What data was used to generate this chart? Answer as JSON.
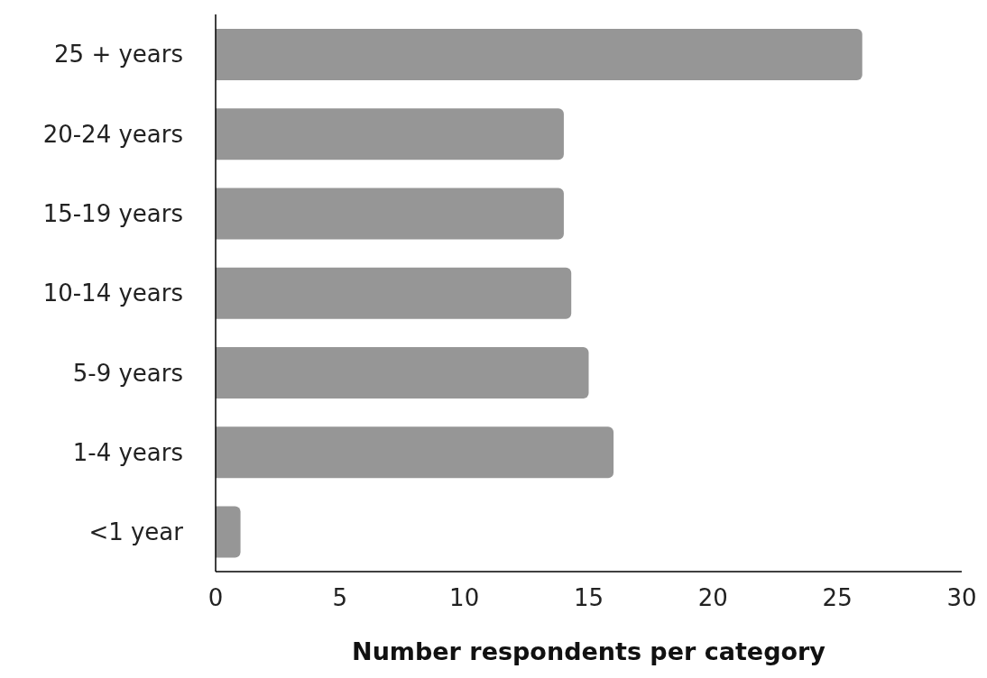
{
  "chart_data": {
    "type": "bar",
    "orientation": "horizontal",
    "xlabel": "Number respondents per category",
    "categories": [
      "25 + years",
      "20-24 years",
      "15-19 years",
      "10-14 years",
      "5-9 years",
      "1-4 years",
      "<1 year"
    ],
    "values": [
      26,
      14,
      14,
      14.3,
      15,
      16,
      1
    ],
    "color": "#969696",
    "xlim": [
      0,
      30
    ],
    "xticks": [
      0,
      5,
      10,
      15,
      20,
      25,
      30
    ],
    "grid": false
  }
}
